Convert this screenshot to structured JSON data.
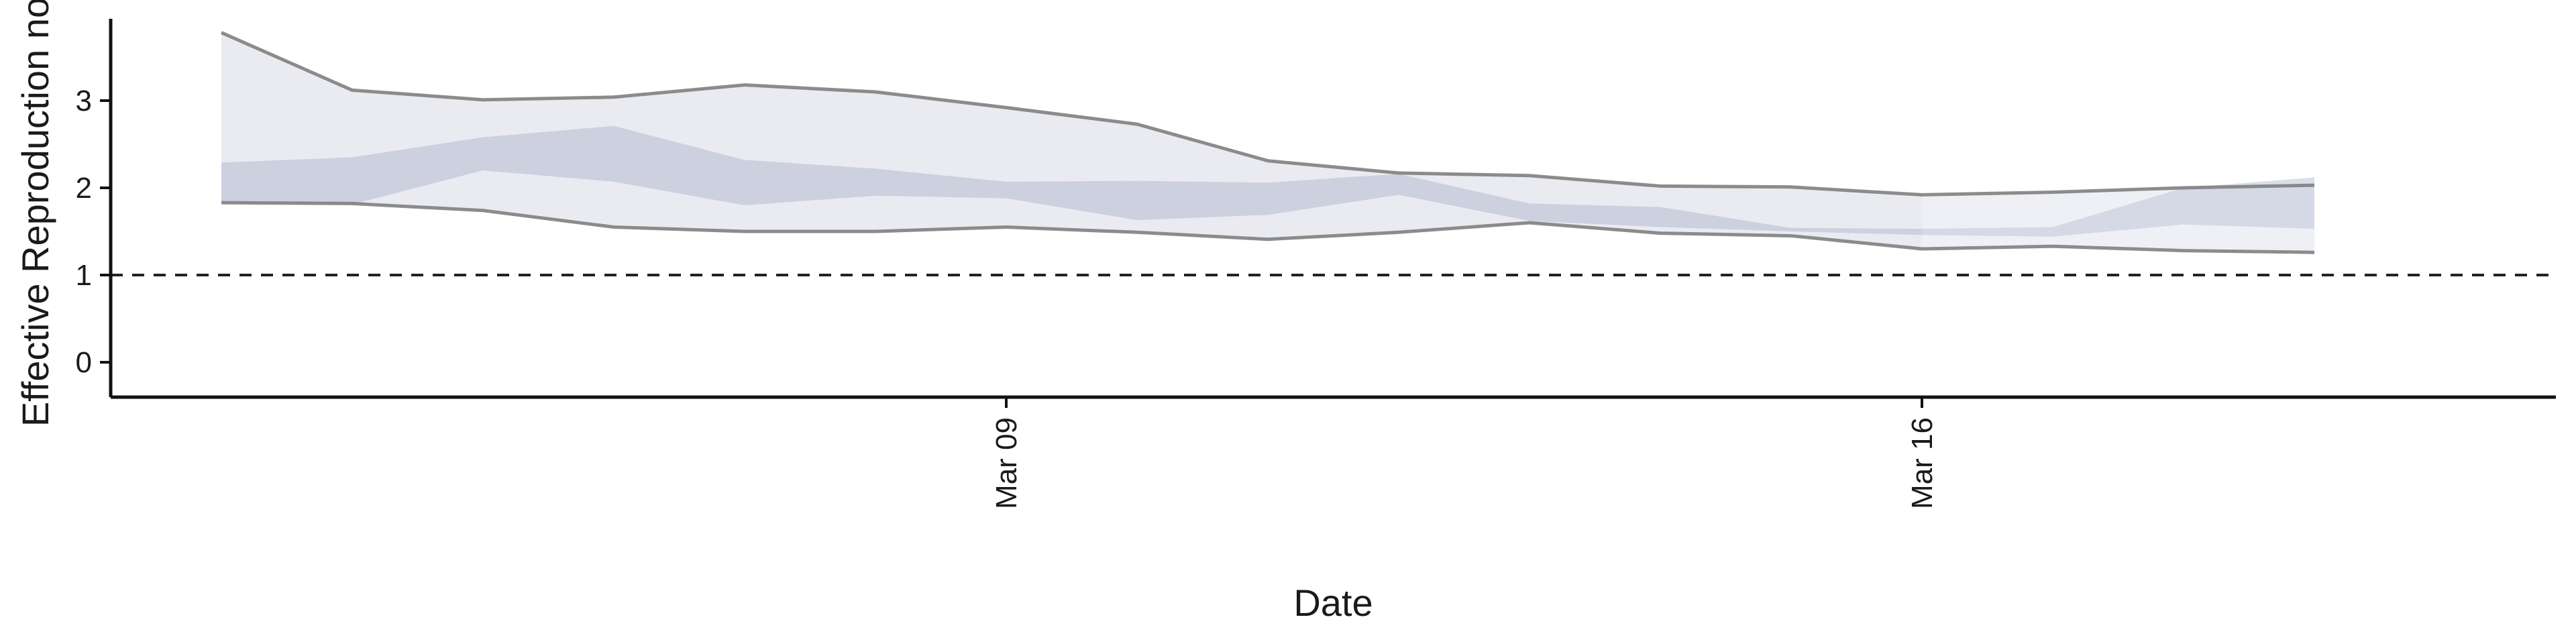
{
  "chart_data": {
    "type": "area",
    "xlabel": "Date",
    "ylabel": "Effective Reproduction no",
    "ylim": [
      -0.4,
      4.0
    ],
    "y_ticks": [
      0,
      1,
      2,
      3
    ],
    "x_ticks": [
      {
        "date": "2020-03-09",
        "label": "Mar 09"
      },
      {
        "date": "2020-03-16",
        "label": "Mar 16"
      }
    ],
    "x_range": [
      "2020-03-03",
      "2020-03-20"
    ],
    "reference_line": {
      "y": 1,
      "style": "dashed"
    },
    "dates": [
      "2020-03-03",
      "2020-03-04",
      "2020-03-05",
      "2020-03-06",
      "2020-03-07",
      "2020-03-08",
      "2020-03-09",
      "2020-03-10",
      "2020-03-11",
      "2020-03-12",
      "2020-03-13",
      "2020-03-14",
      "2020-03-15",
      "2020-03-16",
      "2020-03-17",
      "2020-03-18",
      "2020-03-19",
      "2020-03-20",
      "2020-03-21"
    ],
    "series": [
      {
        "values_upper_90": [
          3.78,
          3.12,
          3.01,
          3.04,
          3.18,
          3.1,
          2.92,
          2.73,
          2.31,
          2.17,
          2.14,
          2.02,
          2.01,
          1.92,
          1.95,
          2.0,
          2.03,
          null,
          null
        ],
        "values_upper_50": [
          2.29,
          2.35,
          2.58,
          2.71,
          2.32,
          2.22,
          2.07,
          2.08,
          2.06,
          2.16,
          1.82,
          1.78,
          1.54,
          1.53,
          1.55,
          2.0,
          2.12,
          null,
          null
        ],
        "values_lower_50": [
          1.84,
          1.81,
          2.2,
          2.07,
          1.8,
          1.91,
          1.88,
          1.63,
          1.69,
          1.92,
          1.62,
          1.55,
          1.5,
          1.46,
          1.44,
          1.58,
          1.53,
          null,
          null
        ],
        "values_lower_90": [
          1.83,
          1.82,
          1.74,
          1.55,
          1.5,
          1.5,
          1.55,
          1.49,
          1.41,
          1.49,
          1.6,
          1.48,
          1.45,
          1.3,
          1.33,
          1.28,
          1.26,
          null,
          null
        ]
      }
    ],
    "colors": {
      "outer_band": "#e6e8ef",
      "inner_band": "#c7cbdc",
      "outline": "#7f7f7f",
      "reference": "#222222",
      "axis": "#111111"
    },
    "grid": false
  }
}
